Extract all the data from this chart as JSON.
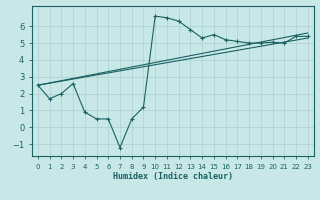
{
  "title": "",
  "xlabel": "Humidex (Indice chaleur)",
  "ylabel": "",
  "background_color": "#c8e8e8",
  "grid_color": "#afd4d4",
  "line_color": "#1a6060",
  "xlim": [
    -0.5,
    23.5
  ],
  "ylim": [
    -1.7,
    7.2
  ],
  "yticks": [
    -1,
    0,
    1,
    2,
    3,
    4,
    5,
    6
  ],
  "xticks": [
    0,
    1,
    2,
    3,
    4,
    5,
    6,
    7,
    8,
    9,
    10,
    11,
    12,
    13,
    14,
    15,
    16,
    17,
    18,
    19,
    20,
    21,
    22,
    23
  ],
  "main_x": [
    0,
    1,
    2,
    3,
    4,
    5,
    6,
    7,
    8,
    9,
    10,
    11,
    12,
    13,
    14,
    15,
    16,
    17,
    18,
    19,
    20,
    21,
    22,
    23
  ],
  "main_y": [
    2.5,
    1.7,
    2.0,
    2.6,
    0.9,
    0.5,
    0.5,
    -1.2,
    0.5,
    1.2,
    6.6,
    6.5,
    6.3,
    5.8,
    5.3,
    5.5,
    5.2,
    5.1,
    5.0,
    5.0,
    5.05,
    5.0,
    5.4,
    5.4
  ],
  "line1_x": [
    0,
    23
  ],
  "line1_y": [
    2.5,
    5.6
  ],
  "line2_x": [
    0,
    23
  ],
  "line2_y": [
    2.5,
    5.3
  ],
  "xlabel_fontsize": 6,
  "tick_fontsize_x": 5,
  "tick_fontsize_y": 6
}
